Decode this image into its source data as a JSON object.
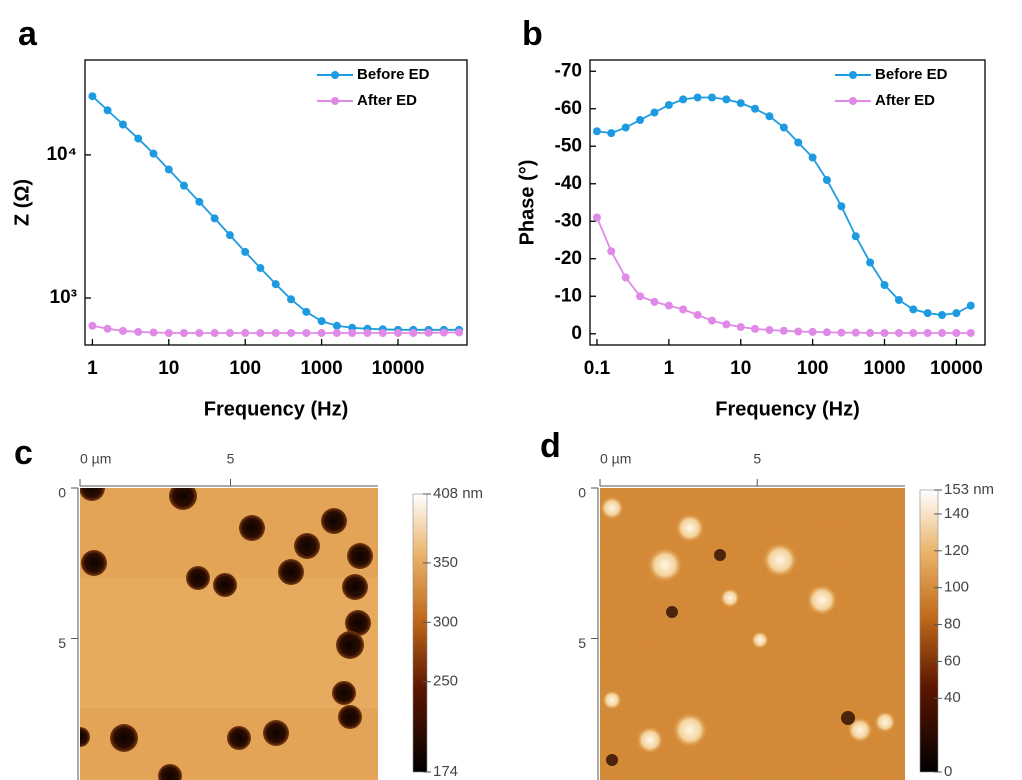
{
  "chart_data": [
    {
      "type": "line",
      "panel_label": "a",
      "xlabel": "Frequency (Hz)",
      "ylabel": "Z (Ω)",
      "xscale": "log",
      "yscale": "log",
      "legend": "upper right",
      "x": [
        1,
        1.58,
        2.51,
        3.98,
        6.31,
        10,
        15.8,
        25.1,
        39.8,
        63.1,
        100,
        158,
        251,
        398,
        631,
        1000,
        1585,
        2512,
        3981,
        6310,
        10000,
        15849,
        25119,
        39811,
        63096
      ],
      "series": [
        {
          "name": "Before ED",
          "color": "#1e9be0",
          "values": [
            25700,
            20500,
            16300,
            13000,
            10200,
            7900,
            6100,
            4700,
            3600,
            2750,
            2100,
            1620,
            1250,
            980,
            800,
            690,
            640,
            620,
            610,
            605,
            600,
            600,
            600,
            600,
            600
          ]
        },
        {
          "name": "After ED",
          "color": "#e08ae8",
          "values": [
            640,
            610,
            590,
            580,
            575,
            570,
            570,
            570,
            570,
            570,
            570,
            570,
            570,
            570,
            570,
            570,
            570,
            570,
            570,
            570,
            570,
            570,
            572,
            574,
            575
          ]
        }
      ],
      "xlim": [
        0.8,
        80000
      ],
      "xticks": [
        1,
        10,
        100,
        1000,
        10000
      ],
      "ylim": [
        470,
        46000
      ],
      "yticks": [
        {
          "value": 1000,
          "label": "10³"
        },
        {
          "value": 10000,
          "label": "10⁴"
        }
      ]
    },
    {
      "type": "line",
      "panel_label": "b",
      "xlabel": "Frequency (Hz)",
      "ylabel": "Phase (°)",
      "xscale": "log",
      "legend": "upper right",
      "x": [
        0.1,
        0.158,
        0.251,
        0.398,
        0.631,
        1,
        1.58,
        2.51,
        3.98,
        6.31,
        10,
        15.8,
        25.1,
        39.8,
        63.1,
        100,
        158,
        251,
        398,
        631,
        1000,
        1585,
        2512,
        3981,
        6310,
        10000,
        15849
      ],
      "series": [
        {
          "name": "Before ED",
          "color": "#1e9be0",
          "values": [
            -54,
            -53.5,
            -55,
            -57,
            -59,
            -61,
            -62.5,
            -63,
            -63,
            -62.5,
            -61.5,
            -60,
            -58,
            -55,
            -51,
            -47,
            -41,
            -34,
            -26,
            -19,
            -13,
            -9,
            -6.5,
            -5.5,
            -5,
            -5.5,
            -7.5
          ]
        },
        {
          "name": "After ED",
          "color": "#e08ae8",
          "values": [
            -31,
            -22,
            -15,
            -10,
            -8.5,
            -7.5,
            -6.5,
            -5,
            -3.5,
            -2.5,
            -1.8,
            -1.3,
            -1,
            -0.8,
            -0.6,
            -0.5,
            -0.4,
            -0.3,
            -0.3,
            -0.2,
            -0.2,
            -0.2,
            -0.2,
            -0.2,
            -0.2,
            -0.2,
            -0.2
          ]
        }
      ],
      "xlim": [
        0.08,
        25000
      ],
      "xticks": [
        0.1,
        1,
        10,
        100,
        1000,
        10000
      ],
      "ylim": [
        3,
        -73
      ],
      "yticks": [
        -70,
        -60,
        -50,
        -40,
        -30,
        -20,
        -10,
        0
      ]
    },
    {
      "type": "image",
      "panel_label": "c",
      "xlim": [
        0,
        9.9
      ],
      "xticks": [
        {
          "value": 0,
          "label": "0 µm"
        },
        5
      ],
      "ylim": [
        0,
        9.7
      ],
      "yticks": [
        0,
        5
      ],
      "clim": [
        174,
        408
      ],
      "cticks": [
        {
          "value": 408,
          "label": "408 nm"
        },
        350,
        300,
        250,
        174
      ]
    },
    {
      "type": "image",
      "panel_label": "d",
      "xlim": [
        0,
        9.7
      ],
      "xticks": [
        {
          "value": 0,
          "label": "0 µm"
        },
        5
      ],
      "ylim": [
        0,
        9.7
      ],
      "yticks": [
        0,
        5
      ],
      "clim": [
        0,
        153
      ],
      "cticks": [
        {
          "value": 153,
          "label": "153 nm"
        },
        140,
        120,
        100,
        80,
        60,
        40,
        0
      ]
    }
  ]
}
